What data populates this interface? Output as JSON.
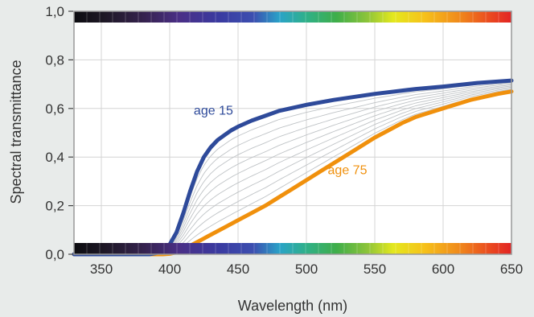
{
  "chart_data": {
    "type": "line",
    "xlabel": "Wavelength (nm)",
    "ylabel": "Spectral transmittance",
    "xlim": [
      330,
      650
    ],
    "ylim": [
      0,
      1
    ],
    "x_ticks": [
      350,
      400,
      450,
      500,
      550,
      600,
      650
    ],
    "x_tick_labels": [
      "350",
      "400",
      "450",
      "500",
      "550",
      "600",
      "650"
    ],
    "y_ticks": [
      0,
      0.2,
      0.4,
      0.6,
      0.8,
      1.0
    ],
    "y_tick_labels": [
      "0,0",
      "0,2",
      "0,4",
      "0,6",
      "0,8",
      "1,0"
    ],
    "grid": true,
    "spectrum_bands": [
      "top",
      "bottom"
    ],
    "colors": {
      "young": "#2e4a9a",
      "old": "#f0900c",
      "intermediate": "#bfc3c6"
    },
    "series": [
      {
        "name": "age 15",
        "role": "young",
        "x": [
          330,
          385,
          390,
          395,
          400,
          405,
          410,
          415,
          420,
          425,
          430,
          435,
          440,
          445,
          450,
          460,
          470,
          480,
          500,
          520,
          550,
          580,
          600,
          625,
          650
        ],
        "y": [
          0,
          0,
          0.005,
          0.015,
          0.04,
          0.09,
          0.17,
          0.26,
          0.34,
          0.4,
          0.44,
          0.47,
          0.49,
          0.51,
          0.525,
          0.55,
          0.57,
          0.59,
          0.615,
          0.635,
          0.66,
          0.68,
          0.69,
          0.705,
          0.715
        ]
      },
      {
        "name": "age 75",
        "role": "old",
        "x": [
          330,
          395,
          400,
          405,
          410,
          415,
          420,
          425,
          430,
          440,
          450,
          460,
          470,
          480,
          490,
          500,
          510,
          520,
          530,
          540,
          550,
          560,
          570,
          580,
          600,
          620,
          640,
          650
        ],
        "y": [
          0,
          0,
          0.002,
          0.008,
          0.018,
          0.035,
          0.05,
          0.065,
          0.08,
          0.11,
          0.14,
          0.17,
          0.2,
          0.235,
          0.27,
          0.305,
          0.34,
          0.375,
          0.41,
          0.445,
          0.48,
          0.51,
          0.54,
          0.565,
          0.6,
          0.635,
          0.66,
          0.67
        ]
      }
    ],
    "intermediate_curves": 9,
    "annotations": [
      {
        "text": "age 15",
        "x": 432,
        "y": 0.575,
        "role": "young"
      },
      {
        "text": "age 75",
        "x": 530,
        "y": 0.33,
        "role": "old"
      }
    ]
  }
}
